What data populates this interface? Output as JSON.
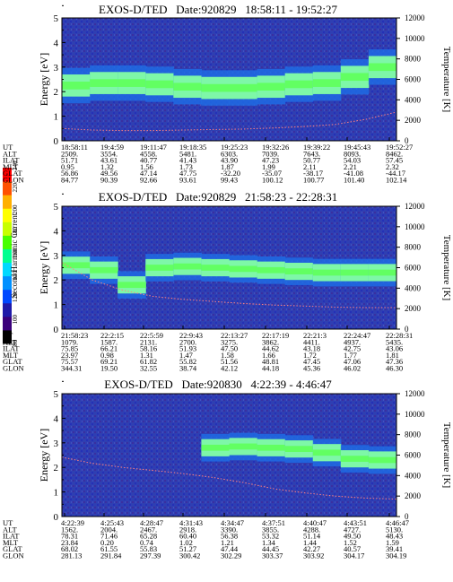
{
  "chart_data": [
    {
      "type": "heatmap",
      "title": "EXOS-D/TED   Date:920829   18:58:11 - 19:52:27",
      "ylabel": "Energy [eV]",
      "y2label": "Temperature [K]",
      "ylim": [
        0,
        5
      ],
      "y2lim": [
        0,
        12000
      ],
      "yticks": [
        "0",
        "1",
        "2",
        "3",
        "4",
        "5"
      ],
      "y2ticks": [
        "0",
        "2000",
        "4000",
        "6000",
        "8000",
        "10000",
        "12000"
      ],
      "band": {
        "center": [
          2.25,
          2.35,
          2.35,
          2.3,
          2.2,
          2.15,
          2.15,
          2.2,
          2.3,
          2.35,
          2.6,
          3.0
        ],
        "half_width": 0.45
      },
      "temperature": [
        1200,
        1050,
        1000,
        1000,
        1050,
        1100,
        1150,
        1250,
        1400,
        1600,
        2100,
        2800
      ],
      "rows": [
        {
          "label": "UT",
          "values": [
            "18:58:11",
            "19:4:59",
            "19:11:47",
            "19:18:35",
            "19:25:23",
            "19:32:26",
            "19:39:22",
            "19:45:43",
            "19:52:27"
          ]
        },
        {
          "label": "ALT",
          "values": [
            "2509.",
            "3554.",
            "4558.",
            "5481.",
            "6303.",
            "7039.",
            "7643.",
            "8093.",
            "8462."
          ]
        },
        {
          "label": "ILAT",
          "values": [
            "51.71",
            "43.61",
            "40.77",
            "41.43",
            "43.90",
            "47.23",
            "50.77",
            "54.03",
            "57.45"
          ]
        },
        {
          "label": "MLT",
          "values": [
            "0.95",
            "1.32",
            "1.56",
            "1.73",
            "1.87",
            "1.99",
            "2.11",
            "2.21",
            "2.32"
          ]
        },
        {
          "label": "GLAT",
          "values": [
            "56.86",
            "49.56",
            "47.14",
            "47.75",
            "-32.20",
            "-35.07",
            "-38.17",
            "-41.08",
            "-44.17"
          ]
        },
        {
          "label": "GLON",
          "values": [
            "84.77",
            "90.39",
            "92.66",
            "93.61",
            "99.43",
            "100.12",
            "100.77",
            "101.40",
            "102.14"
          ]
        }
      ]
    },
    {
      "type": "heatmap",
      "title": "EXOS-D/TED   Date:920829   21:58:23 - 22:28:31",
      "ylabel": "Energy [eV]",
      "y2label": "Temperature [K]",
      "ylim": [
        0,
        5
      ],
      "y2lim": [
        0,
        12000
      ],
      "yticks": [
        "0",
        "1",
        "2",
        "3",
        "4",
        "5"
      ],
      "y2ticks": [
        "0",
        "2000",
        "4000",
        "6000",
        "8000",
        "10000",
        "12000"
      ],
      "band": {
        "center": [
          2.6,
          2.4,
          1.8,
          2.5,
          2.55,
          2.5,
          2.45,
          2.4,
          2.35,
          2.3,
          2.3,
          2.3
        ],
        "half_width": 0.35
      },
      "temperature": [
        6500,
        4800,
        3800,
        3200,
        2900,
        2700,
        2500,
        2350,
        2250,
        2150,
        2100,
        2100
      ],
      "rows": [
        {
          "label": "UT",
          "values": [
            "21:58:23",
            "22:2:15",
            "22:5:59",
            "22:9:43",
            "22:13:27",
            "22:17:19",
            "22:21:3",
            "22:24:47",
            "22:28:31"
          ]
        },
        {
          "label": "ALT",
          "values": [
            "1079.",
            "1587.",
            "2131.",
            "2700.",
            "3275.",
            "3862.",
            "4411.",
            "4937.",
            "5435."
          ]
        },
        {
          "label": "ILAT",
          "values": [
            "75.85",
            "66.21",
            "58.16",
            "51.93",
            "47.50",
            "44.62",
            "43.18",
            "42.75",
            "43.06"
          ]
        },
        {
          "label": "MLT",
          "values": [
            "23.97",
            "0.98",
            "1.31",
            "1.47",
            "1.58",
            "1.66",
            "1.72",
            "1.77",
            "1.81"
          ]
        },
        {
          "label": "GLAT",
          "values": [
            "75.57",
            "69.21",
            "61.82",
            "55.82",
            "51.56",
            "48.81",
            "47.45",
            "47.06",
            "47.36"
          ]
        },
        {
          "label": "GLON",
          "values": [
            "344.31",
            "19.50",
            "32.55",
            "38.74",
            "42.12",
            "44.18",
            "45.36",
            "46.02",
            "46.30"
          ]
        }
      ]
    },
    {
      "type": "heatmap",
      "title": "EXOS-D/TED   Date:920830   4:22:39 - 4:46:47",
      "ylabel": "Energy [eV]",
      "y2label": "Temperature [K]",
      "ylim": [
        0,
        5
      ],
      "y2lim": [
        0,
        12000
      ],
      "yticks": [
        "0",
        "1",
        "2",
        "3",
        "4",
        "5"
      ],
      "y2ticks": [
        "0",
        "2000",
        "4000",
        "6000",
        "8000",
        "10000",
        "12000"
      ],
      "band": {
        "center": [
          null,
          null,
          null,
          null,
          null,
          2.8,
          2.85,
          2.8,
          2.75,
          2.6,
          2.35,
          2.3
        ],
        "half_width": 0.35
      },
      "temperature": [
        5800,
        5200,
        4800,
        4500,
        4200,
        3800,
        3300,
        2700,
        2300,
        2000,
        1800,
        1700
      ],
      "rows": [
        {
          "label": "UT",
          "values": [
            "4:22:39",
            "4:25:43",
            "4:28:47",
            "4:31:43",
            "4:34:47",
            "4:37:51",
            "4:40:47",
            "4:43:51",
            "4:46:47"
          ]
        },
        {
          "label": "ALT",
          "values": [
            "1562.",
            "2004.",
            "2467.",
            "2918.",
            "3390.",
            "3855.",
            "4288.",
            "4727.",
            "5130."
          ]
        },
        {
          "label": "ILAT",
          "values": [
            "78.31",
            "71.46",
            "65.28",
            "60.40",
            "56.38",
            "53.32",
            "51.14",
            "49.50",
            "48.43"
          ]
        },
        {
          "label": "MLT",
          "values": [
            "23.84",
            "0.20",
            "0.74",
            "1.02",
            "1.21",
            "1.34",
            "1.44",
            "1.52",
            "1.59"
          ]
        },
        {
          "label": "GLAT",
          "values": [
            "68.02",
            "61.55",
            "55.83",
            "51.27",
            "47.44",
            "44.45",
            "42.27",
            "40.57",
            "39.41"
          ]
        },
        {
          "label": "GLON",
          "values": [
            "281.13",
            "291.84",
            "297.39",
            "300.42",
            "302.29",
            "303.37",
            "303.92",
            "304.17",
            "304.19"
          ]
        }
      ]
    }
  ],
  "colorbar": {
    "label": "Second Harmonic Current",
    "ticks": [
      "80",
      "100",
      "120",
      "140",
      "160",
      "180",
      "200",
      "220",
      "240"
    ],
    "colors": [
      "#000000",
      "#3a007a",
      "#1f1aa8",
      "#0048ff",
      "#0090ff",
      "#00d8ff",
      "#00ff90",
      "#48ff00",
      "#c8ff00",
      "#ffff00",
      "#ffb000",
      "#ff5000",
      "#ff0000"
    ]
  },
  "colors": {
    "background": "#2a38a8",
    "band": "#7ef7a8",
    "band_core": "#62ff62",
    "temperature": "#ff8080"
  }
}
